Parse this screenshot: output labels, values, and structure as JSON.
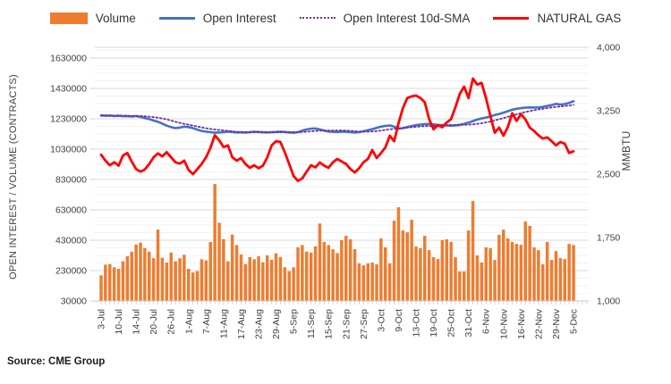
{
  "source": "Source: CME Group",
  "colors": {
    "volume": "#ED7D31",
    "open_interest": "#4472C4",
    "sma": "#7030A0",
    "natural_gas": "#FF0000",
    "grid_major": "#D9D9D9",
    "grid_minor": "#F2F2F2",
    "axis_text": "#404040",
    "tick_mark": "#C6C6C6"
  },
  "chart_data": {
    "type": "combo",
    "legend_position": "top",
    "grid": true,
    "left_axis": {
      "label": "OPEN INTEREST / VOLUME (CONTRACTS)",
      "min": 30000,
      "max": 1630000,
      "major_unit": 200000,
      "minor_unit": 50000,
      "tick_labels": [
        "1630000",
        "1430000",
        "1230000",
        "1030000",
        "830000",
        "630000",
        "430000",
        "230000",
        "30000"
      ]
    },
    "right_axis": {
      "label": "MMBTU",
      "min": 1000,
      "max": 4000,
      "major_unit": 750,
      "tick_labels": [
        "4,000",
        "3,250",
        "2,500",
        "1,750",
        "1,000"
      ]
    },
    "x_axis": {
      "tick_label_every": 4,
      "tick_labels": [
        "3-Jul",
        "10-Jul",
        "14-Jul",
        "20-Jul",
        "26-Jul",
        "1-Aug",
        "7-Aug",
        "11-Aug",
        "17-Aug",
        "23-Aug",
        "29-Aug",
        "5-Sep",
        "11-Sep",
        "15-Sep",
        "21-Sep",
        "27-Sep",
        "3-Oct",
        "9-Oct",
        "13-Oct",
        "19-Oct",
        "25-Oct",
        "31-Oct",
        "6-Nov",
        "10-Nov",
        "16-Nov",
        "22-Nov",
        "29-Nov",
        "5-Dec"
      ]
    },
    "series": [
      {
        "name": "Volume",
        "type": "bar",
        "axis": "left",
        "color": "#ED7D31",
        "values": [
          199000,
          269000,
          273000,
          252000,
          242000,
          291000,
          324000,
          355000,
          402000,
          414000,
          379000,
          355000,
          311000,
          500000,
          314000,
          283000,
          349000,
          291000,
          311000,
          334000,
          242000,
          218000,
          226000,
          305000,
          297000,
          418000,
          800000,
          545000,
          437000,
          291000,
          467000,
          398000,
          336000,
          273000,
          318000,
          305000,
          324000,
          285000,
          330000,
          301000,
          344000,
          320000,
          252000,
          226000,
          252000,
          383000,
          398000,
          355000,
          349000,
          390000,
          540000,
          418000,
          398000,
          370000,
          345000,
          430000,
          459000,
          436000,
          371000,
          277000,
          265000,
          277000,
          283000,
          271000,
          442000,
          383000,
          277000,
          559000,
          647000,
          494000,
          482000,
          565000,
          389000,
          377000,
          459000,
          365000,
          318000,
          306000,
          430000,
          436000,
          418000,
          318000,
          224000,
          224000,
          494000,
          688000,
          330000,
          283000,
          383000,
          377000,
          300000,
          465000,
          500000,
          442000,
          418000,
          406000,
          400000,
          553000,
          524000,
          383000,
          365000,
          271000,
          418000,
          300000,
          359000,
          312000,
          306000,
          406000,
          398000
        ]
      },
      {
        "name": "Open Interest",
        "type": "line",
        "axis": "left",
        "color": "#4472C4",
        "values": [
          1252000,
          1250000,
          1251000,
          1248000,
          1250000,
          1247000,
          1248000,
          1245000,
          1248000,
          1242000,
          1235000,
          1228000,
          1218000,
          1210000,
          1198000,
          1185000,
          1175000,
          1168000,
          1172000,
          1178000,
          1175000,
          1168000,
          1158000,
          1150000,
          1145000,
          1142000,
          1138000,
          1140000,
          1142000,
          1145000,
          1143000,
          1140000,
          1141000,
          1139000,
          1142000,
          1144000,
          1143000,
          1141000,
          1140000,
          1142000,
          1143000,
          1145000,
          1143000,
          1140000,
          1138000,
          1142000,
          1152000,
          1160000,
          1165000,
          1166000,
          1160000,
          1152000,
          1146000,
          1144000,
          1143000,
          1145000,
          1144000,
          1142000,
          1140000,
          1142000,
          1148000,
          1155000,
          1162000,
          1170000,
          1178000,
          1183000,
          1186000,
          1178000,
          1165000,
          1168000,
          1175000,
          1182000,
          1188000,
          1192000,
          1194000,
          1196000,
          1193000,
          1190000,
          1188000,
          1186000,
          1184000,
          1186000,
          1190000,
          1196000,
          1205000,
          1215000,
          1225000,
          1232000,
          1238000,
          1245000,
          1255000,
          1262000,
          1270000,
          1280000,
          1290000,
          1296000,
          1300000,
          1303000,
          1305000,
          1304000,
          1305000,
          1308000,
          1315000,
          1320000,
          1328000,
          1324000,
          1327000,
          1335000,
          1345000
        ]
      },
      {
        "name": "Open Interest 10d-SMA",
        "type": "dotted-line",
        "axis": "left",
        "color": "#7030A0",
        "derived_from": "Open Interest",
        "sma_window": 10
      },
      {
        "name": "NATURAL GAS",
        "type": "line",
        "axis": "right",
        "color": "#FF0000",
        "values": [
          2730,
          2660,
          2605,
          2640,
          2600,
          2720,
          2750,
          2650,
          2560,
          2530,
          2555,
          2620,
          2700,
          2745,
          2710,
          2760,
          2700,
          2640,
          2625,
          2660,
          2550,
          2500,
          2560,
          2620,
          2700,
          2810,
          2960,
          2900,
          2820,
          2840,
          2700,
          2660,
          2690,
          2620,
          2575,
          2605,
          2570,
          2600,
          2700,
          2840,
          2890,
          2880,
          2760,
          2620,
          2480,
          2420,
          2450,
          2530,
          2605,
          2580,
          2637,
          2600,
          2575,
          2640,
          2680,
          2650,
          2620,
          2560,
          2520,
          2570,
          2640,
          2680,
          2785,
          2690,
          2750,
          2817,
          2954,
          2890,
          3100,
          3280,
          3400,
          3420,
          3430,
          3400,
          3350,
          3150,
          3030,
          3080,
          3055,
          3110,
          3150,
          3290,
          3450,
          3535,
          3400,
          3630,
          3560,
          3580,
          3400,
          3190,
          2990,
          3050,
          2955,
          3060,
          3220,
          3130,
          3210,
          3150,
          3050,
          3010,
          2960,
          2920,
          2935,
          2890,
          2840,
          2880,
          2860,
          2750,
          2770
        ]
      }
    ]
  }
}
